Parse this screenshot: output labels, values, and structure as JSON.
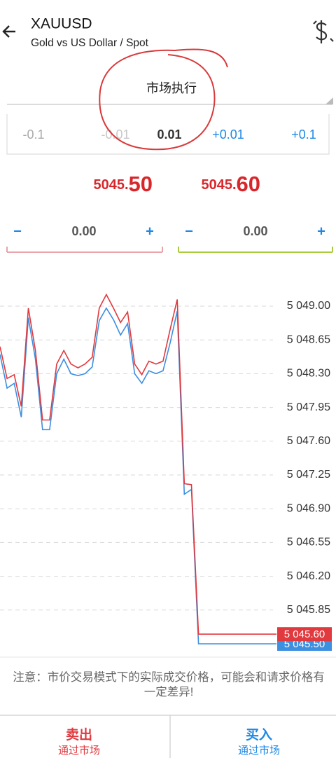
{
  "header": {
    "symbol": "XAUUSD",
    "description": "Gold vs US Dollar / Spot"
  },
  "order_type": "市场执行",
  "volume_steps": [
    "-0.1",
    "-0.01",
    "0.01",
    "+0.01",
    "+0.1"
  ],
  "prices": [
    {
      "prefix": "5045.",
      "suffix": "50"
    },
    {
      "prefix": "5045.",
      "suffix": "60"
    }
  ],
  "steppers": [
    {
      "minus": "−",
      "value": "0.00",
      "plus": "+"
    },
    {
      "minus": "−",
      "value": "0.00",
      "plus": "+"
    }
  ],
  "chart_data": {
    "type": "line",
    "ylim": [
      5045.42,
      5049.305
    ],
    "yticks": [
      {
        "value": 5049.0,
        "label": "5 049.00"
      },
      {
        "value": 5048.65,
        "label": "5 048.65"
      },
      {
        "value": 5048.3,
        "label": "5 048.30"
      },
      {
        "value": 5047.95,
        "label": "5 047.95"
      },
      {
        "value": 5047.6,
        "label": "5 047.60"
      },
      {
        "value": 5047.25,
        "label": "5 047.25"
      },
      {
        "value": 5046.9,
        "label": "5 046.90"
      },
      {
        "value": 5046.55,
        "label": "5 046.55"
      },
      {
        "value": 5046.2,
        "label": "5 046.20"
      },
      {
        "value": 5045.85,
        "label": "5 045.85"
      }
    ],
    "grid": true,
    "series": [
      {
        "color": "#3d8fe0",
        "price_label": "5 045.50",
        "values": [
          5048.5,
          5048.15,
          5048.2,
          5047.85,
          5048.88,
          5048.45,
          5047.72,
          5047.72,
          5048.3,
          5048.45,
          5048.3,
          5048.28,
          5048.3,
          5048.37,
          5048.85,
          5048.98,
          5048.86,
          5048.7,
          5048.82,
          5048.3,
          5048.2,
          5048.33,
          5048.3,
          5048.33,
          5048.62,
          5048.95,
          5047.05,
          5047.1,
          5045.5,
          5045.5,
          5045.5,
          5045.5,
          5045.5,
          5045.5,
          5045.5,
          5045.5,
          5045.5,
          5045.5,
          5045.5,
          5045.5
        ]
      },
      {
        "color": "#e0393e",
        "price_label": "5 045.60",
        "values": [
          5048.58,
          5048.25,
          5048.29,
          5047.96,
          5048.98,
          5048.54,
          5047.82,
          5047.82,
          5048.4,
          5048.54,
          5048.4,
          5048.36,
          5048.4,
          5048.47,
          5048.98,
          5049.12,
          5048.98,
          5048.83,
          5048.94,
          5048.4,
          5048.29,
          5048.43,
          5048.4,
          5048.43,
          5048.76,
          5049.07,
          5047.16,
          5047.15,
          5045.6,
          5045.6,
          5045.6,
          5045.6,
          5045.6,
          5045.6,
          5045.6,
          5045.6,
          5045.6,
          5045.6,
          5045.6,
          5045.6
        ]
      }
    ]
  },
  "notice": "注意：市价交易模式下的实际成交价格，可能会和请求价格有一定差异!",
  "buttons": [
    {
      "label": "卖出",
      "sublabel": "通过市场"
    },
    {
      "label": "买入",
      "sublabel": "通过市场"
    }
  ]
}
